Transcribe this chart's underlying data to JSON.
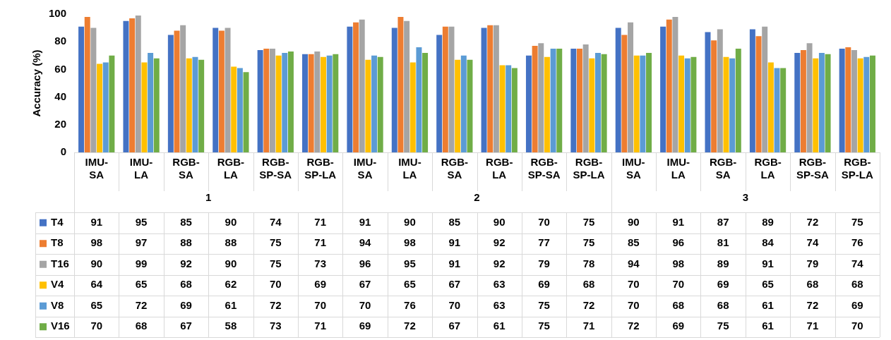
{
  "chart_data": {
    "type": "bar",
    "ylabel": "Accuracy (%)",
    "categories": [
      "IMU-SA",
      "IMU-LA",
      "RGB-SA",
      "RGB-LA",
      "RGB-SP-SA",
      "RGB-SP-LA",
      "IMU-SA",
      "IMU-LA",
      "RGB-SA",
      "RGB-LA",
      "RGB-SP-SA",
      "RGB-SP-LA",
      "IMU-SA",
      "IMU-LA",
      "RGB-SA",
      "RGB-LA",
      "RGB-SP-SA",
      "RGB-SP-LA"
    ],
    "annotations": [
      "1",
      "2",
      "3"
    ],
    "series": [
      {
        "name": "T4",
        "color": "#4472c4",
        "values": [
          91,
          95,
          85,
          90,
          74,
          71,
          91,
          90,
          85,
          90,
          70,
          75,
          90,
          91,
          87,
          89,
          72,
          75
        ]
      },
      {
        "name": "T8",
        "color": "#ed7d31",
        "values": [
          98,
          97,
          88,
          88,
          75,
          71,
          94,
          98,
          91,
          92,
          77,
          75,
          85,
          96,
          81,
          84,
          74,
          76
        ]
      },
      {
        "name": "T16",
        "color": "#a5a5a5",
        "values": [
          90,
          99,
          92,
          90,
          75,
          73,
          96,
          95,
          91,
          92,
          79,
          78,
          94,
          98,
          89,
          91,
          79,
          74
        ]
      },
      {
        "name": "V4",
        "color": "#ffc000",
        "values": [
          64,
          65,
          68,
          62,
          70,
          69,
          67,
          65,
          67,
          63,
          69,
          68,
          70,
          70,
          69,
          65,
          68,
          68
        ]
      },
      {
        "name": "V8",
        "color": "#5b9bd5",
        "values": [
          65,
          72,
          69,
          61,
          72,
          70,
          70,
          76,
          70,
          63,
          75,
          72,
          70,
          68,
          68,
          61,
          72,
          69
        ]
      },
      {
        "name": "V16",
        "color": "#70ad47",
        "values": [
          70,
          68,
          67,
          58,
          73,
          71,
          69,
          72,
          67,
          61,
          75,
          71,
          72,
          69,
          75,
          61,
          71,
          70
        ]
      }
    ],
    "ylim": [
      0,
      100
    ],
    "yticks": [
      0,
      20,
      40,
      60,
      80,
      100
    ],
    "grid": false,
    "legend": "bottom left",
    "data_labels": true
  }
}
